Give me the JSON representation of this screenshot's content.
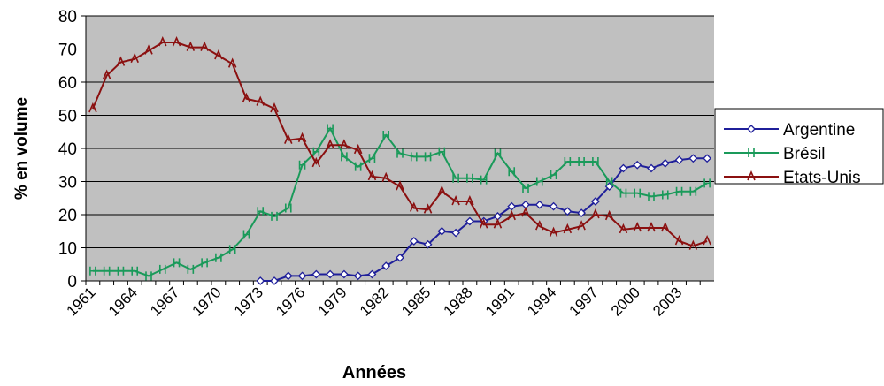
{
  "chart_data": {
    "type": "line",
    "x_label": "Années",
    "y_label": "% en volume",
    "categories": [
      "1961",
      null,
      null,
      "1964",
      null,
      null,
      "1967",
      null,
      null,
      "1970",
      null,
      null,
      "1973",
      null,
      null,
      "1976",
      null,
      null,
      "1979",
      null,
      null,
      "1982",
      null,
      null,
      "1985",
      null,
      null,
      "1988",
      null,
      null,
      "1991",
      null,
      null,
      "1994",
      null,
      null,
      "1997",
      null,
      null,
      "2000",
      null,
      null,
      "2003",
      null,
      null
    ],
    "ylim": [
      0,
      80
    ],
    "yticks": [
      0,
      10,
      20,
      30,
      40,
      50,
      60,
      70,
      80
    ],
    "grid": true,
    "legend": "right",
    "series": [
      {
        "name": "Argentine",
        "color": "#1f1f9a",
        "marker": "diamond",
        "values": [
          null,
          null,
          null,
          null,
          null,
          null,
          null,
          null,
          null,
          null,
          null,
          null,
          0,
          0,
          1.5,
          1.5,
          2,
          2,
          2,
          1.5,
          2,
          4.5,
          7,
          12,
          11,
          15,
          14.5,
          18,
          18,
          19.5,
          22.5,
          23,
          23,
          22.5,
          21,
          20.5,
          24,
          28.5,
          34,
          35,
          34,
          35.5,
          36.5,
          37,
          37
        ]
      },
      {
        "name": "Brésil",
        "color": "#1a9a5a",
        "marker": "bar",
        "values": [
          3,
          3,
          3,
          3,
          1.5,
          3.5,
          5.5,
          3.5,
          5.5,
          7,
          9.5,
          14,
          21,
          19.5,
          22,
          35,
          39,
          46,
          37.5,
          34.5,
          37,
          44,
          38.5,
          37.5,
          37.5,
          39,
          31,
          31,
          30.5,
          38.5,
          33,
          28,
          30,
          32,
          36,
          36,
          36,
          30,
          26.5,
          26.5,
          25.5,
          26,
          27,
          27,
          29.5
        ]
      },
      {
        "name": "Etats-Unis",
        "color": "#8b1010",
        "marker": "triangle",
        "values": [
          52,
          62,
          66,
          67,
          69.5,
          72,
          72,
          70.5,
          70.5,
          68,
          65.5,
          55,
          54,
          52,
          42.5,
          43,
          35.5,
          41,
          41,
          39.5,
          31.5,
          31,
          28.5,
          22,
          21.5,
          27,
          24,
          24,
          17,
          17,
          19.5,
          20.5,
          16.5,
          14.5,
          15.5,
          16.5,
          20,
          19.5,
          15.5,
          16,
          16,
          16,
          12,
          10.5,
          12
        ]
      }
    ]
  }
}
